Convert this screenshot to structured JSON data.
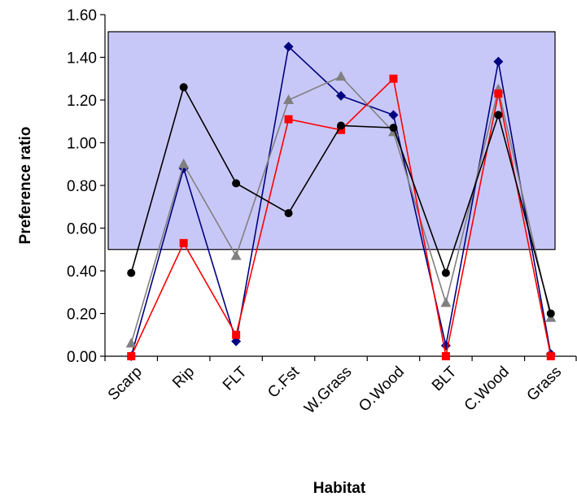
{
  "chart_data": {
    "type": "line",
    "xlabel": "Habitat",
    "ylabel": "Preference ratio",
    "categories": [
      "Scarp",
      "Rip",
      "FLT",
      "C.Fst",
      "W.Grass",
      "O.Wood",
      "BLT",
      "C.Wood",
      "Grass"
    ],
    "ylim": [
      0,
      1.6
    ],
    "yticks": [
      "0.00",
      "0.20",
      "0.40",
      "0.60",
      "0.80",
      "1.00",
      "1.20",
      "1.40",
      "1.60"
    ],
    "grid": false,
    "legend": "none",
    "highlight_band": {
      "from": 0.5,
      "to": 1.52,
      "color": "#c8c8f8"
    },
    "series": [
      {
        "color": "#000080",
        "marker": "diamond",
        "values": [
          0.0,
          0.88,
          0.07,
          1.45,
          1.22,
          1.13,
          0.05,
          1.38,
          0.01
        ]
      },
      {
        "color": "#808080",
        "marker": "triangle",
        "values": [
          0.06,
          0.9,
          0.47,
          1.2,
          1.31,
          1.05,
          0.25,
          1.25,
          0.18
        ]
      },
      {
        "color": "#ff0000",
        "marker": "square",
        "values": [
          0.0,
          0.53,
          0.1,
          1.11,
          1.06,
          1.3,
          0.0,
          1.23,
          0.0
        ]
      },
      {
        "color": "#000000",
        "marker": "circle",
        "values": [
          0.39,
          1.26,
          0.81,
          0.67,
          1.08,
          1.07,
          0.39,
          1.13,
          0.2
        ]
      }
    ]
  }
}
